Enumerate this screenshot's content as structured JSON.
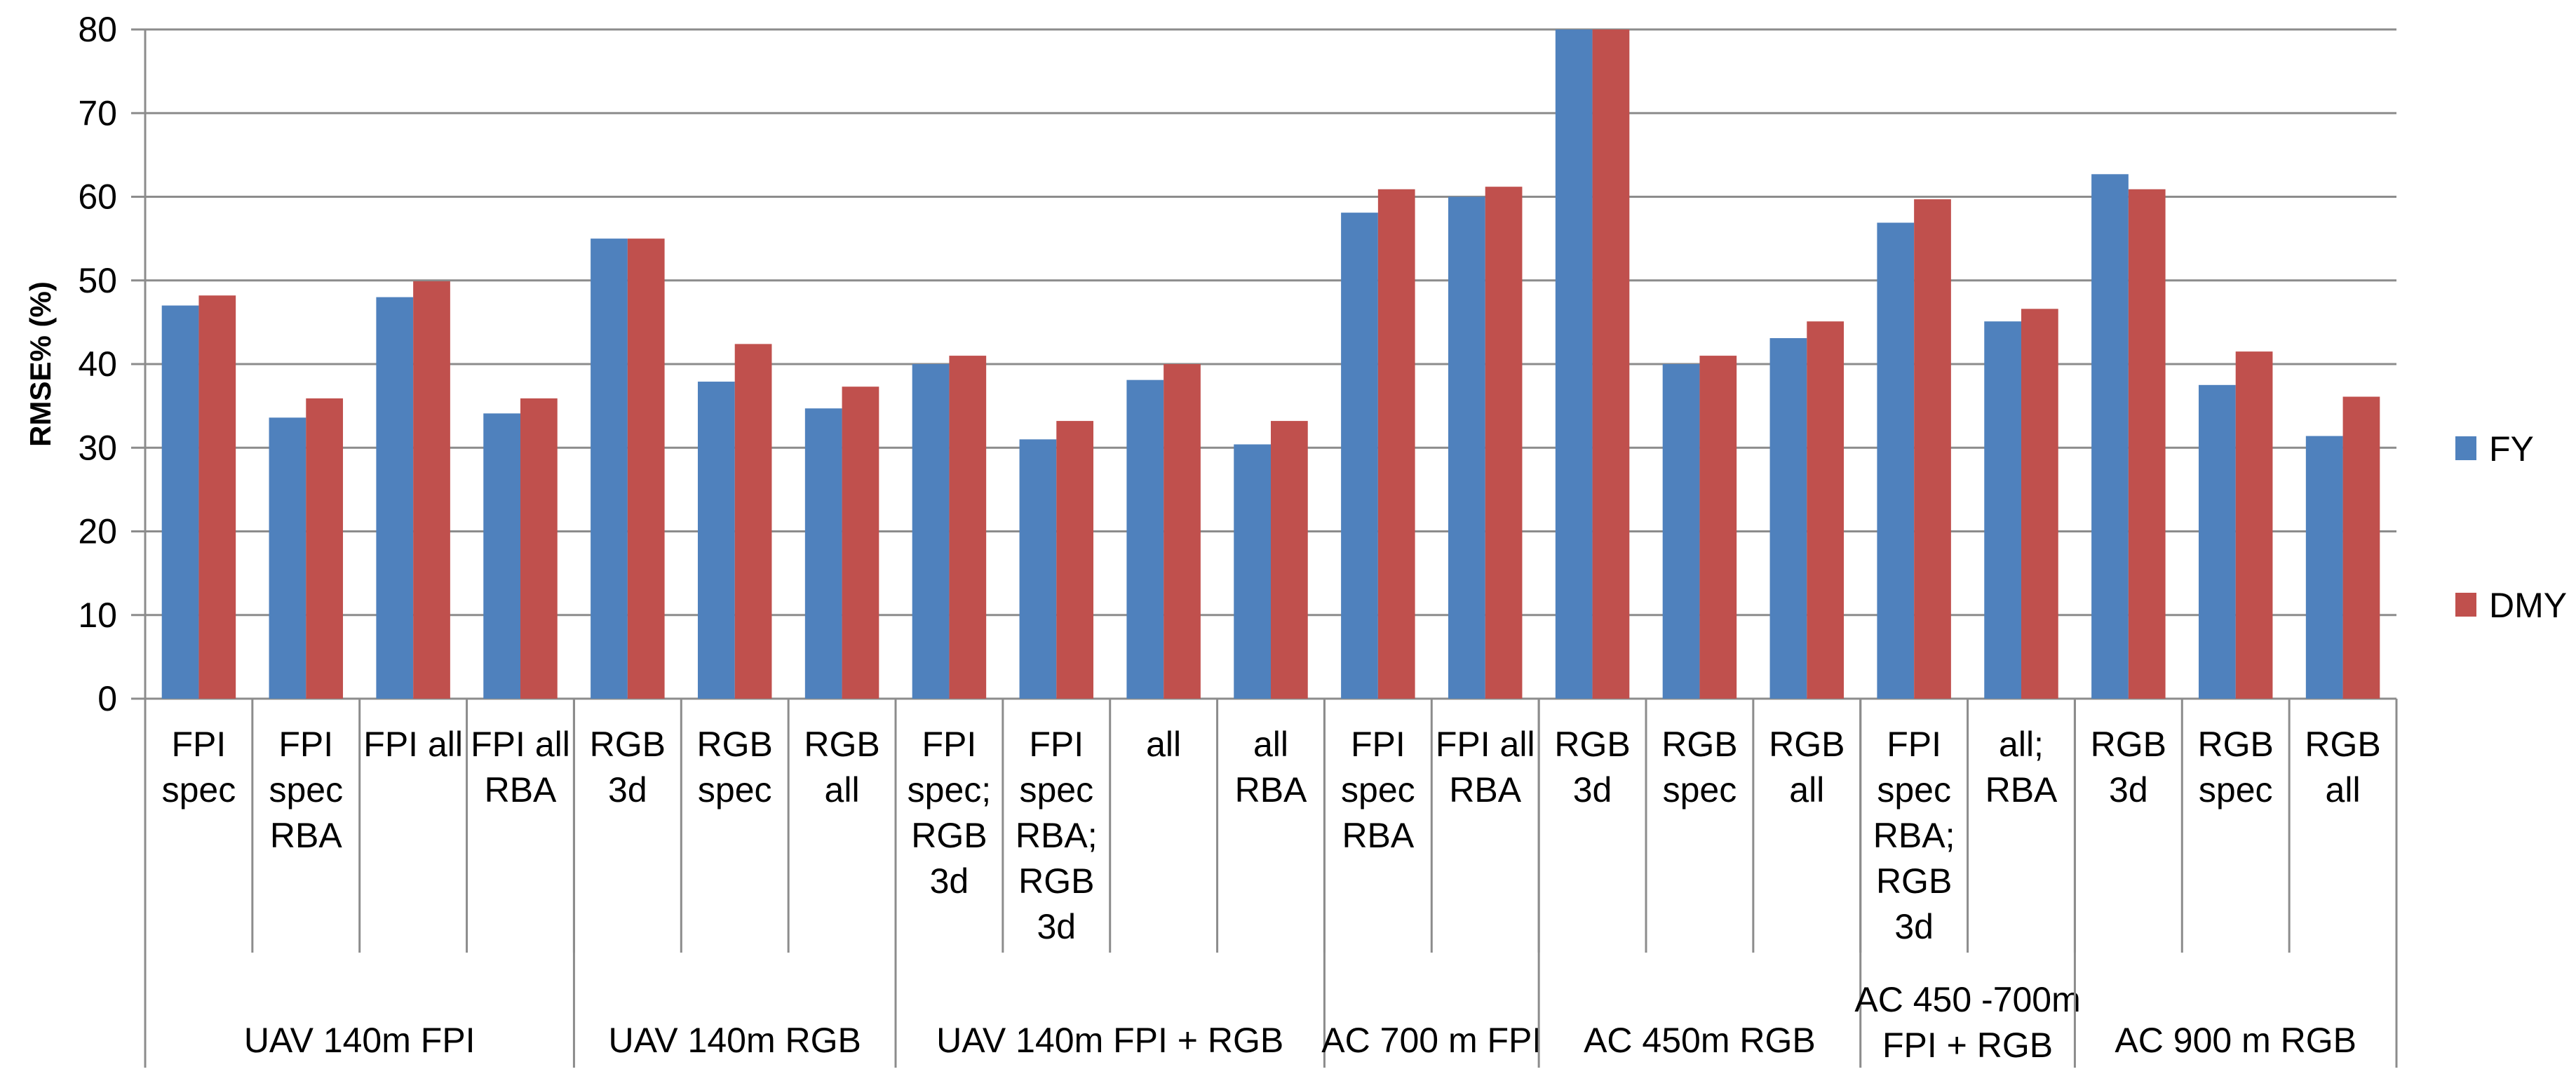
{
  "chart_data": {
    "type": "bar",
    "ylabel": "RMSE% (%)",
    "ylim": [
      0,
      80
    ],
    "yticks": [
      0,
      10,
      20,
      30,
      40,
      50,
      60,
      70,
      80
    ],
    "grid": true,
    "legend_position": "right",
    "categories": [
      "FPI\nspec",
      "FPI\nspec\nRBA",
      "FPI all",
      "FPI all\nRBA",
      "RGB\n3d",
      "RGB\nspec",
      "RGB\nall",
      "FPI\nspec;\nRGB\n3d",
      "FPI\nspec\nRBA;\nRGB\n3d",
      "all",
      "all\nRBA",
      "FPI\nspec\nRBA",
      "FPI all\nRBA",
      "RGB\n3d",
      "RGB\nspec",
      "RGB\nall",
      "FPI\nspec\nRBA;\nRGB\n3d",
      "all;\nRBA",
      "RGB\n3d",
      "RGB\nspec",
      "RGB\nall"
    ],
    "groups": [
      {
        "label": "UAV 140m FPI",
        "count": 4
      },
      {
        "label": "UAV 140m RGB",
        "count": 3
      },
      {
        "label": "UAV 140m FPI + RGB",
        "count": 4
      },
      {
        "label": "AC 700 m FPI",
        "count": 2
      },
      {
        "label": "AC 450m RGB",
        "count": 3
      },
      {
        "label": "AC 450 -700m\nFPI + RGB",
        "count": 2
      },
      {
        "label": "AC 900 m RGB",
        "count": 3
      }
    ],
    "series": [
      {
        "name": "FY",
        "color": "#4f81bd",
        "values": [
          47.0,
          33.6,
          48.0,
          34.1,
          55.0,
          37.9,
          34.7,
          40.0,
          31.0,
          38.1,
          30.4,
          58.1,
          60.0,
          80.0,
          40.0,
          43.1,
          56.9,
          45.1,
          62.7,
          37.5,
          31.4
        ]
      },
      {
        "name": "DMY",
        "color": "#c0504d",
        "values": [
          48.2,
          35.9,
          49.9,
          35.9,
          55.0,
          42.4,
          37.3,
          41.0,
          33.2,
          40.0,
          33.2,
          60.9,
          61.2,
          80.0,
          41.0,
          45.1,
          59.7,
          46.6,
          60.9,
          41.5,
          36.1
        ]
      }
    ]
  }
}
